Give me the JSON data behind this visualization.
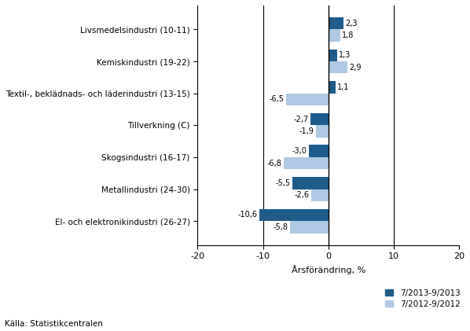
{
  "categories": [
    "El- och elektronikindustri (26-27)",
    "Metallindustri (24-30)",
    "Skogsindustri (16-17)",
    "Tillverkning (C)",
    "Textil-, beklädnads- och läderindustri (13-15)",
    "Kemiskindustri (19-22)",
    "Livsmedelsindustri (10-11)"
  ],
  "series1_values": [
    -10.6,
    -5.5,
    -3.0,
    -2.7,
    1.1,
    1.3,
    2.3
  ],
  "series2_values": [
    -5.8,
    -2.6,
    -6.8,
    -1.9,
    -6.5,
    2.9,
    1.8
  ],
  "series1_color": "#1F5C8B",
  "series2_color": "#AFC9E2",
  "series1_label": "7/2013-9/2013",
  "series2_label": "7/2012-9/2012",
  "xlabel": "Årsförändring, %",
  "xlim": [
    -20,
    20
  ],
  "xticks": [
    -20,
    -10,
    0,
    10,
    20
  ],
  "background_color": "#ffffff",
  "source_text": "Källa: Statistikcentralen"
}
